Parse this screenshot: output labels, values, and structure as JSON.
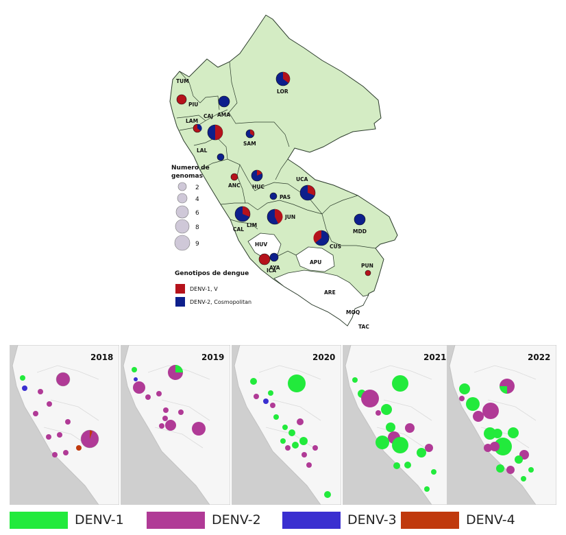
{
  "top_map": {
    "region_labels": [
      "TUM",
      "PIU",
      "CAJ",
      "AMA",
      "LAM",
      "LAL",
      "SAM",
      "LOR",
      "ANC",
      "HUC",
      "UCA",
      "PAS",
      "CAL",
      "LIM",
      "JUN",
      "HUV",
      "AYA",
      "APU",
      "CUS",
      "MDD",
      "ICA",
      "ARE",
      "PUN",
      "MOQ",
      "TAC"
    ],
    "genome_legend": {
      "title_line1": "Numero de",
      "title_line2": "genomas",
      "sizes": [
        "2",
        "4",
        "6",
        "8",
        "9"
      ]
    },
    "genotype_legend": {
      "title": "Genotipos de dengue",
      "items": [
        {
          "label": "DENV-1, V",
          "color": "#b5121b"
        },
        {
          "label": "DENV-2, Cosmopolitan",
          "color": "#0d1f8c"
        }
      ]
    },
    "colors": {
      "land": "#d4ecc4",
      "border": "#2a3a2a",
      "blank_region": "#ffffff",
      "legend_circle": "#cfc8d8"
    }
  },
  "years": [
    "2018",
    "2019",
    "2020",
    "2021",
    "2022"
  ],
  "bottom_legend": [
    {
      "label": "DENV-1",
      "color": "#22ea3c"
    },
    {
      "label": "DENV-2",
      "color": "#b03a96"
    },
    {
      "label": "DENV-3",
      "color": "#3a2fd0"
    },
    {
      "label": "DENV-4",
      "color": "#c0390d"
    }
  ],
  "panel_colors": {
    "sea": "#cfcfcf",
    "land": "#f6f6f6",
    "border": "#c2c2c2"
  }
}
